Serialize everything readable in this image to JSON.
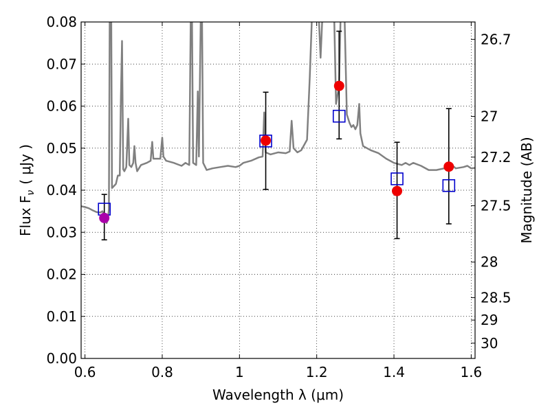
{
  "chart_data": {
    "type": "scatter",
    "xlabel": "Wavelength  λ (μm)",
    "ylabel": "Flux  F",
    "ylabel_subscript": "ν",
    "ylabel_unit": "( μJy )",
    "ylabel_right": "Magnitude (AB)",
    "xlim": [
      0.59,
      1.61
    ],
    "ylim": [
      0.0,
      0.08
    ],
    "x_ticks": [
      {
        "value": 0.6,
        "label": "0.6"
      },
      {
        "value": 0.8,
        "label": "0.8"
      },
      {
        "value": 1.0,
        "label": "1"
      },
      {
        "value": 1.2,
        "label": "1.2"
      },
      {
        "value": 1.4,
        "label": "1.4"
      },
      {
        "value": 1.6,
        "label": "1.6"
      }
    ],
    "y_ticks": [
      {
        "value": 0.0,
        "label": "0.00"
      },
      {
        "value": 0.01,
        "label": "0.01"
      },
      {
        "value": 0.02,
        "label": "0.02"
      },
      {
        "value": 0.03,
        "label": "0.03"
      },
      {
        "value": 0.04,
        "label": "0.04"
      },
      {
        "value": 0.05,
        "label": "0.05"
      },
      {
        "value": 0.06,
        "label": "0.06"
      },
      {
        "value": 0.07,
        "label": "0.07"
      },
      {
        "value": 0.08,
        "label": "0.08"
      }
    ],
    "right_ticks": [
      {
        "mag": 26.7,
        "label": "26.7"
      },
      {
        "mag": 27.0,
        "label": "27"
      },
      {
        "mag": 27.2,
        "label": "27.2"
      },
      {
        "mag": 27.5,
        "label": "27.5"
      },
      {
        "mag": 28.0,
        "label": "28"
      },
      {
        "mag": 28.5,
        "label": "28.5"
      },
      {
        "mag": 29.0,
        "label": "29"
      },
      {
        "mag": 30.0,
        "label": "30"
      }
    ],
    "grid": true,
    "spectrum": {
      "color": "#808080",
      "points": [
        [
          0.59,
          0.0362
        ],
        [
          0.6,
          0.036
        ],
        [
          0.61,
          0.0357
        ],
        [
          0.62,
          0.0352
        ],
        [
          0.63,
          0.0348
        ],
        [
          0.64,
          0.0347
        ],
        [
          0.645,
          0.035
        ],
        [
          0.652,
          0.0338
        ],
        [
          0.656,
          0.0322
        ],
        [
          0.659,
          0.033
        ],
        [
          0.662,
          0.0355
        ],
        [
          0.664,
          0.082
        ],
        [
          0.668,
          0.082
        ],
        [
          0.67,
          0.0405
        ],
        [
          0.675,
          0.041
        ],
        [
          0.68,
          0.0415
        ],
        [
          0.685,
          0.0435
        ],
        [
          0.69,
          0.0435
        ],
        [
          0.693,
          0.0625
        ],
        [
          0.696,
          0.0755
        ],
        [
          0.699,
          0.045
        ],
        [
          0.702,
          0.0445
        ],
        [
          0.707,
          0.0455
        ],
        [
          0.712,
          0.057
        ],
        [
          0.715,
          0.046
        ],
        [
          0.72,
          0.0455
        ],
        [
          0.725,
          0.0465
        ],
        [
          0.728,
          0.0505
        ],
        [
          0.731,
          0.0465
        ],
        [
          0.735,
          0.0445
        ],
        [
          0.745,
          0.046
        ],
        [
          0.76,
          0.0465
        ],
        [
          0.77,
          0.047
        ],
        [
          0.774,
          0.0515
        ],
        [
          0.777,
          0.0475
        ],
        [
          0.785,
          0.0475
        ],
        [
          0.795,
          0.0475
        ],
        [
          0.8,
          0.0525
        ],
        [
          0.803,
          0.048
        ],
        [
          0.81,
          0.047
        ],
        [
          0.83,
          0.0465
        ],
        [
          0.85,
          0.0458
        ],
        [
          0.86,
          0.0465
        ],
        [
          0.87,
          0.046
        ],
        [
          0.874,
          0.082
        ],
        [
          0.877,
          0.082
        ],
        [
          0.88,
          0.0465
        ],
        [
          0.888,
          0.046
        ],
        [
          0.892,
          0.0635
        ],
        [
          0.895,
          0.048
        ],
        [
          0.9,
          0.082
        ],
        [
          0.903,
          0.082
        ],
        [
          0.906,
          0.0465
        ],
        [
          0.915,
          0.0448
        ],
        [
          0.93,
          0.0452
        ],
        [
          0.95,
          0.0455
        ],
        [
          0.97,
          0.0458
        ],
        [
          0.99,
          0.0455
        ],
        [
          1.0,
          0.0458
        ],
        [
          1.01,
          0.0465
        ],
        [
          1.03,
          0.047
        ],
        [
          1.05,
          0.0478
        ],
        [
          1.06,
          0.048
        ],
        [
          1.064,
          0.0585
        ],
        [
          1.068,
          0.049
        ],
        [
          1.08,
          0.0485
        ],
        [
          1.1,
          0.049
        ],
        [
          1.12,
          0.0488
        ],
        [
          1.13,
          0.0492
        ],
        [
          1.135,
          0.0565
        ],
        [
          1.14,
          0.05
        ],
        [
          1.15,
          0.049
        ],
        [
          1.16,
          0.0495
        ],
        [
          1.175,
          0.052
        ],
        [
          1.182,
          0.067
        ],
        [
          1.188,
          0.082
        ],
        [
          1.205,
          0.082
        ],
        [
          1.21,
          0.0715
        ],
        [
          1.215,
          0.082
        ],
        [
          1.245,
          0.082
        ],
        [
          1.25,
          0.0605
        ],
        [
          1.258,
          0.065
        ],
        [
          1.262,
          0.082
        ],
        [
          1.272,
          0.082
        ],
        [
          1.278,
          0.058
        ],
        [
          1.285,
          0.056
        ],
        [
          1.29,
          0.055
        ],
        [
          1.295,
          0.0555
        ],
        [
          1.3,
          0.0545
        ],
        [
          1.305,
          0.0555
        ],
        [
          1.31,
          0.0605
        ],
        [
          1.313,
          0.0535
        ],
        [
          1.32,
          0.0505
        ],
        [
          1.34,
          0.0495
        ],
        [
          1.36,
          0.0488
        ],
        [
          1.38,
          0.0475
        ],
        [
          1.4,
          0.0465
        ],
        [
          1.42,
          0.046
        ],
        [
          1.43,
          0.0465
        ],
        [
          1.44,
          0.046
        ],
        [
          1.45,
          0.0465
        ],
        [
          1.47,
          0.0458
        ],
        [
          1.49,
          0.0448
        ],
        [
          1.51,
          0.0448
        ],
        [
          1.53,
          0.0452
        ],
        [
          1.54,
          0.0455
        ],
        [
          1.55,
          0.046
        ],
        [
          1.56,
          0.0452
        ],
        [
          1.58,
          0.0455
        ],
        [
          1.59,
          0.0458
        ],
        [
          1.6,
          0.0452
        ],
        [
          1.61,
          0.0453
        ]
      ]
    },
    "errorbars": [
      {
        "x": 0.65,
        "low": 0.0282,
        "high": 0.039
      },
      {
        "x": 1.068,
        "low": 0.0402,
        "high": 0.0633
      },
      {
        "x": 1.258,
        "low": 0.0522,
        "high": 0.0778
      },
      {
        "x": 1.408,
        "low": 0.0285,
        "high": 0.0514
      },
      {
        "x": 1.542,
        "low": 0.032,
        "high": 0.0594
      }
    ],
    "model_points": {
      "marker": "open-square",
      "color": "#0000cc",
      "points": [
        {
          "x": 0.65,
          "y": 0.0355
        },
        {
          "x": 1.068,
          "y": 0.0517
        },
        {
          "x": 1.258,
          "y": 0.0576
        },
        {
          "x": 1.408,
          "y": 0.0427
        },
        {
          "x": 1.542,
          "y": 0.0411
        }
      ]
    },
    "observed_points": {
      "marker": "filled-circle",
      "points": [
        {
          "x": 0.65,
          "y": 0.0334,
          "color": "#aa00aa"
        },
        {
          "x": 1.068,
          "y": 0.0518,
          "color": "#ee0000"
        },
        {
          "x": 1.258,
          "y": 0.0648,
          "color": "#ee0000"
        },
        {
          "x": 1.408,
          "y": 0.0398,
          "color": "#ee0000"
        },
        {
          "x": 1.542,
          "y": 0.0456,
          "color": "#ee0000"
        }
      ]
    }
  }
}
